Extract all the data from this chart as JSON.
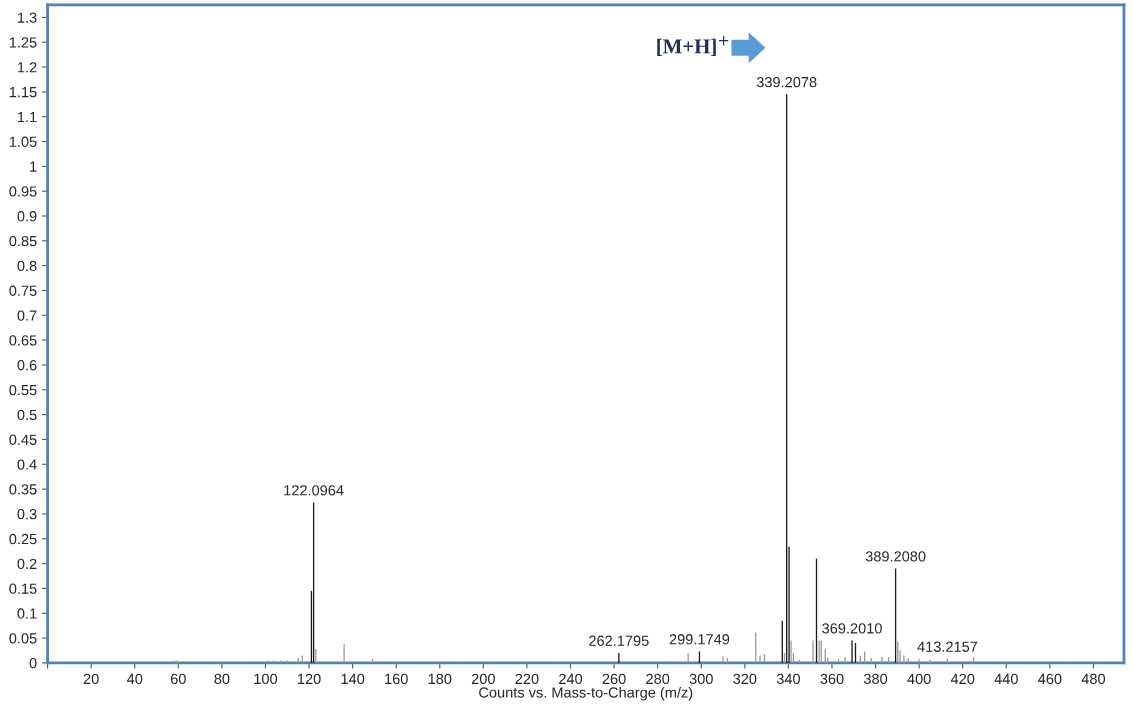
{
  "chart_data": {
    "type": "bar",
    "xlabel": "Counts vs. Mass-to-Charge (m/z)",
    "series": [
      {
        "color": "#1a1a1a",
        "x": [
          121.1,
          122.0964,
          262.1795,
          299.1749,
          337.2,
          339.2078,
          340.3,
          352.9,
          369.201,
          370.8,
          389.208
        ],
        "values": [
          0.145,
          0.323,
          0.02,
          0.023,
          0.085,
          1.145,
          0.234,
          0.21,
          0.045,
          0.04,
          0.19
        ]
      },
      {
        "color": "#9a9a9a",
        "x": [
          59,
          60,
          74,
          78,
          89,
          101,
          104,
          107,
          110,
          115,
          116.9,
          123.1,
          126,
          130,
          136.1,
          143,
          149.1,
          160,
          175,
          190,
          205,
          220,
          235,
          250,
          270,
          285,
          294,
          310,
          312,
          325,
          327,
          329,
          338.2,
          341.2,
          342.3,
          345,
          351.3,
          354.1,
          355.1,
          356.9,
          358,
          363,
          366,
          373,
          375,
          378,
          383,
          386,
          390.2,
          391.2,
          393,
          395,
          400,
          405,
          413,
          425,
          440,
          455,
          470,
          485
        ],
        "values": [
          0.006,
          0.004,
          0.004,
          0.003,
          0.003,
          0.005,
          0.005,
          0.005,
          0.005,
          0.01,
          0.015,
          0.028,
          0.004,
          0.004,
          0.038,
          0.004,
          0.008,
          0.004,
          0.003,
          0.003,
          0.003,
          0.003,
          0.003,
          0.003,
          0.004,
          0.004,
          0.02,
          0.013,
          0.01,
          0.061,
          0.015,
          0.018,
          0.02,
          0.045,
          0.02,
          0.006,
          0.045,
          0.045,
          0.045,
          0.028,
          0.01,
          0.008,
          0.012,
          0.015,
          0.023,
          0.01,
          0.012,
          0.012,
          0.043,
          0.025,
          0.015,
          0.01,
          0.008,
          0.006,
          0.008,
          0.012,
          0.004,
          0.004,
          0.004,
          0.004
        ]
      }
    ],
    "xlim": [
      0,
      494
    ],
    "ylim": [
      0,
      1.325
    ],
    "xticks": [
      {
        "value": 0,
        "label": null
      },
      20,
      40,
      60,
      80,
      100,
      120,
      140,
      160,
      180,
      200,
      220,
      240,
      260,
      280,
      300,
      320,
      340,
      360,
      380,
      400,
      420,
      440,
      460,
      480
    ],
    "yticks": [
      0,
      0.05,
      0.1,
      0.15,
      0.2,
      0.25,
      0.3,
      0.35,
      0.4,
      0.45,
      0.5,
      0.55,
      0.6,
      0.65,
      0.7,
      0.75,
      0.8,
      0.85,
      0.9,
      0.95,
      1,
      1.05,
      1.1,
      1.15,
      1.2,
      1.25,
      1.3
    ],
    "grid": false,
    "legend": false,
    "annotations": [
      {
        "text": "122.0964",
        "x": 122.0964,
        "y": 0.323
      },
      {
        "text": "339.2078",
        "x": 339.2078,
        "y": 1.145
      },
      {
        "text": "262.1795",
        "x": 262.1795,
        "y": 0.02
      },
      {
        "text": "299.1749",
        "x": 299.1749,
        "y": 0.023
      },
      {
        "text": "369.2010",
        "x": 369.201,
        "y": 0.045
      },
      {
        "text": "389.2080",
        "x": 389.208,
        "y": 0.19
      },
      {
        "text": "413.2157",
        "x": 413,
        "y": 0.008
      },
      "[M+H]$^{+}$"
    ]
  }
}
